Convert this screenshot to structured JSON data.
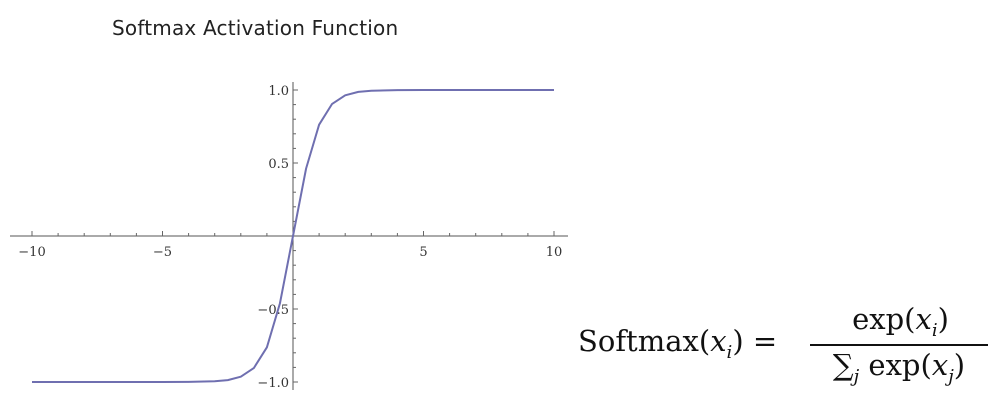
{
  "title": "Softmax Activation Function",
  "chart_data": {
    "type": "line",
    "title": "Softmax Activation Function",
    "xlim": [
      -10,
      10
    ],
    "ylim": [
      -1.0,
      1.0
    ],
    "x_ticks": [
      -10,
      -5,
      5,
      10
    ],
    "x_tick_labels": [
      "−10",
      "−5",
      "5",
      "10"
    ],
    "y_ticks": [
      -1.0,
      -0.5,
      0.5,
      1.0
    ],
    "y_tick_labels": [
      "−1.0",
      "−0.5",
      "0.5",
      "1.0"
    ],
    "series": [
      {
        "color": "#6f6fb0",
        "x": [
          -10,
          -9,
          -8,
          -7,
          -6,
          -5,
          -4,
          -3,
          -2.5,
          -2,
          -1.5,
          -1,
          -0.5,
          0,
          0.5,
          1,
          1.5,
          2,
          2.5,
          3,
          4,
          5,
          6,
          7,
          8,
          9,
          10
        ],
        "y": [
          -1.0,
          -1.0,
          -1.0,
          -1.0,
          -1.0,
          -1.0,
          -0.999,
          -0.995,
          -0.987,
          -0.964,
          -0.905,
          -0.762,
          -0.462,
          0.0,
          0.462,
          0.762,
          0.905,
          0.964,
          0.987,
          0.995,
          0.999,
          1.0,
          1.0,
          1.0,
          1.0,
          1.0,
          1.0
        ]
      }
    ],
    "grid": false,
    "legend": "none"
  },
  "formula": {
    "lhs_name": "Softmax",
    "lhs_arg": "x",
    "lhs_sub": "i",
    "equals": "=",
    "num_func": "exp",
    "num_arg": "x",
    "num_sub": "i",
    "den_sum": "∑",
    "den_sum_sub": "j",
    "den_func": "exp",
    "den_arg": "x",
    "den_sub": "j"
  }
}
